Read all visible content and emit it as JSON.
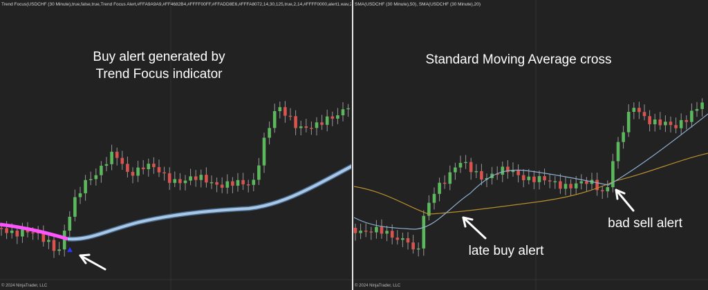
{
  "panels": [
    {
      "header": "Trend Focus(USDCHF (30 Minute),true,false,true,Trend Focus Alert,#FFA9A9A9,#FF4682B4,#FFFF00FF,#FFADD8E6,#FFFA8072,14,30,125,true,2,14,#FFFF0000,alert1.wav,2,#FF00",
      "annotations": [
        "Buy alert generated by",
        "Trend Focus indicator"
      ],
      "footer": "© 2024 NinjaTrader, LLC"
    },
    {
      "header": "SMA(USDCHF (30 Minute),50), SMA(USDCHF (30 Minute),20)",
      "annotations": [
        "Standard Moving Average cross",
        "late buy alert",
        "bad sell alert"
      ],
      "footer": "© 2024 NinjaTrader, LLC"
    }
  ]
}
